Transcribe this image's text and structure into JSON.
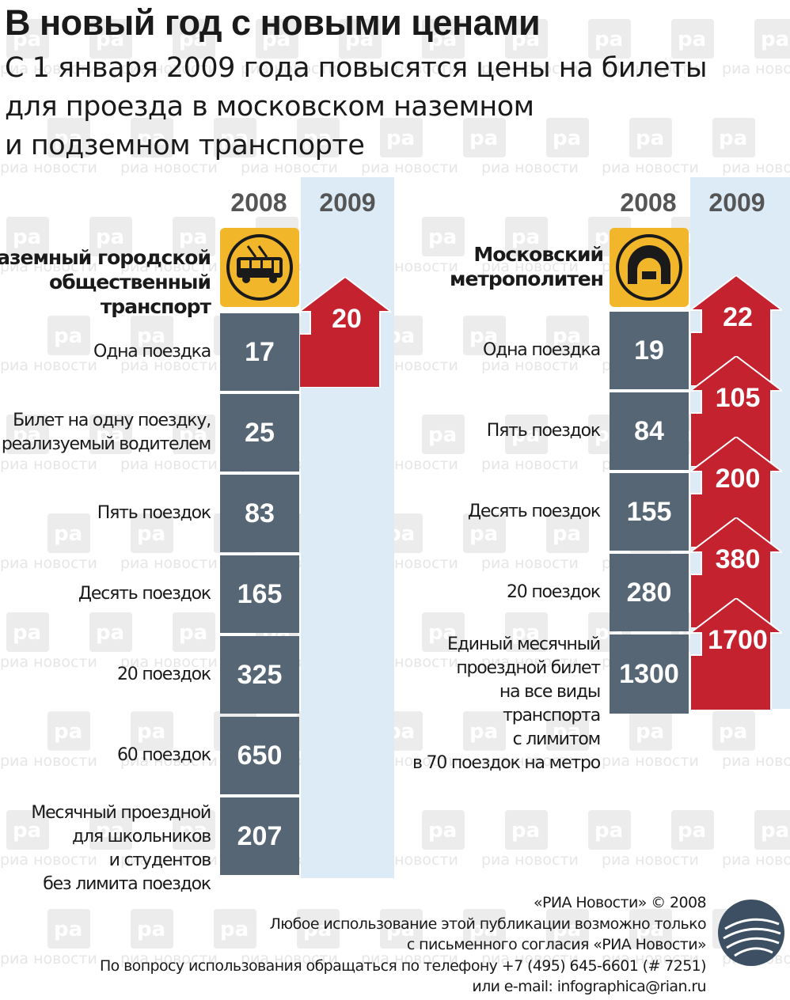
{
  "header": {
    "title": "В новый год с новыми ценами",
    "subtitle_lines": [
      "С 1 января 2009 года повысятся цены на билеты",
      "для проезда в московском наземном",
      "и подземном транспорте"
    ]
  },
  "watermark": {
    "text": "риа новости",
    "logo": "ра"
  },
  "colors": {
    "price_2008_cell": "#566674",
    "price_2009_arrow": "#c4222f",
    "icon_background": "#f2b62b",
    "column_2009_background": "#dcebf6"
  },
  "chart_data": [
    {
      "type": "table",
      "title_lines": [
        "Наземный городской",
        "общественный",
        "транспорт"
      ],
      "icon": "trolleybus-icon",
      "columns": [
        "2008",
        "2009"
      ],
      "rows": [
        {
          "label_lines": [
            "Одна поездка"
          ],
          "value_2008": "17",
          "value_2009": "20"
        },
        {
          "label_lines": [
            "Билет на одну поездку,",
            "реализуемый водителем"
          ],
          "value_2008": "25",
          "value_2009": null
        },
        {
          "label_lines": [
            "Пять поездок"
          ],
          "value_2008": "83",
          "value_2009": null
        },
        {
          "label_lines": [
            "Десять поездок"
          ],
          "value_2008": "165",
          "value_2009": null
        },
        {
          "label_lines": [
            "20 поездок"
          ],
          "value_2008": "325",
          "value_2009": null
        },
        {
          "label_lines": [
            "60 поездок"
          ],
          "value_2008": "650",
          "value_2009": null
        },
        {
          "label_lines": [
            "Месячный проездной",
            "для школьников",
            "и студентов",
            "без лимита поездок"
          ],
          "value_2008": "207",
          "value_2009": null
        }
      ]
    },
    {
      "type": "table",
      "title_lines": [
        "Московский",
        "метрополитен"
      ],
      "icon": "metro-tunnel-icon",
      "columns": [
        "2008",
        "2009"
      ],
      "rows": [
        {
          "label_lines": [
            "Одна поездка"
          ],
          "value_2008": "19",
          "value_2009": "22"
        },
        {
          "label_lines": [
            "Пять поездок"
          ],
          "value_2008": "84",
          "value_2009": "105"
        },
        {
          "label_lines": [
            "Десять поездок"
          ],
          "value_2008": "155",
          "value_2009": "200"
        },
        {
          "label_lines": [
            "20 поездок"
          ],
          "value_2008": "280",
          "value_2009": "380"
        },
        {
          "label_lines": [
            "Единый месячный",
            "проездной билет",
            "на все виды",
            "транспорта",
            "с лимитом",
            "в 70 поездок на метро"
          ],
          "value_2008": "1300",
          "value_2009": "1700"
        }
      ]
    }
  ],
  "footer": {
    "lines": [
      "«РИА Новости» © 2008",
      "Любое использование этой публикации возможно только",
      "с письменного согласия «РИА Новости»",
      "По вопросу использования обращаться по телефону +7 (495) 645-6601 (# 7251)",
      "или e-mail: infographica@rian.ru"
    ],
    "logo_icon": "ria-novosti-globe-logo"
  }
}
